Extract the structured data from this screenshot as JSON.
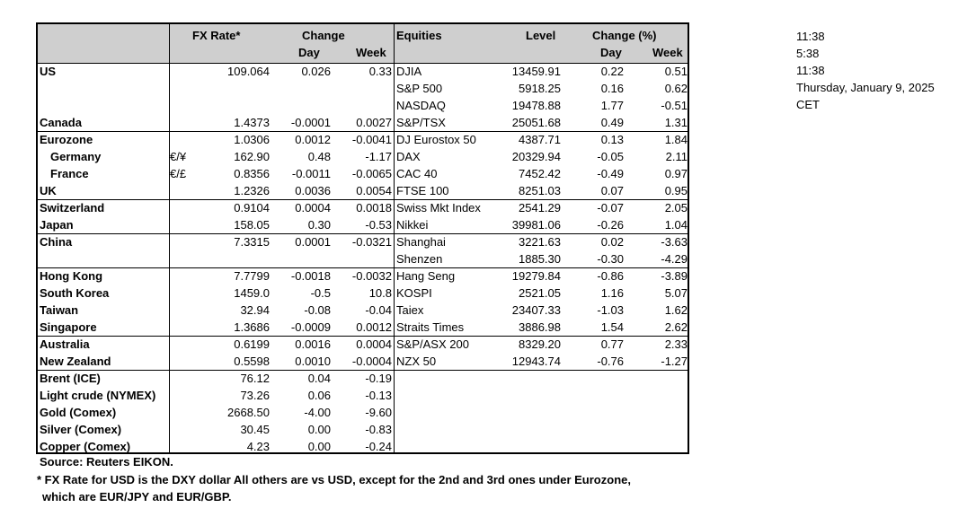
{
  "headers": {
    "fx_rate": "FX Rate*",
    "change": "Change",
    "day": "Day",
    "week": "Week",
    "equities": "Equities",
    "level": "Level",
    "change_pct": "Change (%)",
    "eq_day": "Day",
    "eq_week": "Week"
  },
  "rows": [
    {
      "name": "US",
      "indent": false,
      "curr": "",
      "fx": "109.064",
      "day": "0.026",
      "week": "0.33",
      "index": "DJIA",
      "level": "13459.91",
      "eq_day": "0.22",
      "eq_week": "0.51"
    },
    {
      "name": "",
      "indent": false,
      "curr": "",
      "fx": "",
      "day": "",
      "week": "",
      "index": "S&P 500",
      "level": "5918.25",
      "eq_day": "0.16",
      "eq_week": "0.62"
    },
    {
      "name": "",
      "indent": false,
      "curr": "",
      "fx": "",
      "day": "",
      "week": "",
      "index": "NASDAQ",
      "level": "19478.88",
      "eq_day": "1.77",
      "eq_week": "-0.51"
    },
    {
      "name": "Canada",
      "indent": false,
      "curr": "",
      "fx": "1.4373",
      "day": "-0.0001",
      "week": "0.0027",
      "index": "S&P/TSX",
      "level": "25051.68",
      "eq_day": "0.49",
      "eq_week": "1.31"
    },
    {
      "name": "Eurozone",
      "indent": false,
      "curr": "",
      "fx": "1.0306",
      "day": "0.0012",
      "week": "-0.0041",
      "index": "DJ Eurostox 50",
      "level": "4387.71",
      "eq_day": "0.13",
      "eq_week": "1.84"
    },
    {
      "name": "Germany",
      "indent": true,
      "curr": "€/¥",
      "fx": "162.90",
      "day": "0.48",
      "week": "-1.17",
      "index": "DAX",
      "level": "20329.94",
      "eq_day": "-0.05",
      "eq_week": "2.11"
    },
    {
      "name": "France",
      "indent": true,
      "curr": "€/£",
      "fx": "0.8356",
      "day": "-0.0011",
      "week": "-0.0065",
      "index": "CAC 40",
      "level": "7452.42",
      "eq_day": "-0.49",
      "eq_week": "0.97"
    },
    {
      "name": "UK",
      "indent": false,
      "curr": "",
      "fx": "1.2326",
      "day": "0.0036",
      "week": "0.0054",
      "index": "FTSE 100",
      "level": "8251.03",
      "eq_day": "0.07",
      "eq_week": "0.95"
    },
    {
      "name": "Switzerland",
      "indent": false,
      "curr": "",
      "fx": "0.9104",
      "day": "0.0004",
      "week": "0.0018",
      "index": "Swiss Mkt Index",
      "level": "2541.29",
      "eq_day": "-0.07",
      "eq_week": "2.05"
    },
    {
      "name": "Japan",
      "indent": false,
      "curr": "",
      "fx": "158.05",
      "day": "0.30",
      "week": "-0.53",
      "index": "Nikkei",
      "level": "39981.06",
      "eq_day": "-0.26",
      "eq_week": "1.04"
    },
    {
      "name": "China",
      "indent": false,
      "curr": "",
      "fx": "7.3315",
      "day": "0.0001",
      "week": "-0.0321",
      "index": "Shanghai",
      "level": "3221.63",
      "eq_day": "0.02",
      "eq_week": "-3.63"
    },
    {
      "name": "",
      "indent": false,
      "curr": "",
      "fx": "",
      "day": "",
      "week": "",
      "index": "Shenzen",
      "level": "1885.30",
      "eq_day": "-0.30",
      "eq_week": "-4.29"
    },
    {
      "name": "Hong Kong",
      "indent": false,
      "curr": "",
      "fx": "7.7799",
      "day": "-0.0018",
      "week": "-0.0032",
      "index": "Hang Seng",
      "level": "19279.84",
      "eq_day": "-0.86",
      "eq_week": "-3.89"
    },
    {
      "name": "South Korea",
      "indent": false,
      "curr": "",
      "fx": "1459.0",
      "day": "-0.5",
      "week": "10.8",
      "index": "KOSPI",
      "level": "2521.05",
      "eq_day": "1.16",
      "eq_week": "5.07"
    },
    {
      "name": "Taiwan",
      "indent": false,
      "curr": "",
      "fx": "32.94",
      "day": "-0.08",
      "week": "-0.04",
      "index": "Taiex",
      "level": "23407.33",
      "eq_day": "-1.03",
      "eq_week": "1.62"
    },
    {
      "name": "Singapore",
      "indent": false,
      "curr": "",
      "fx": "1.3686",
      "day": "-0.0009",
      "week": "0.0012",
      "index": "Straits Times",
      "level": "3886.98",
      "eq_day": "1.54",
      "eq_week": "2.62"
    },
    {
      "name": "Australia",
      "indent": false,
      "curr": "",
      "fx": "0.6199",
      "day": "0.0016",
      "week": "0.0004",
      "index": "S&P/ASX  200",
      "level": "8329.20",
      "eq_day": "0.77",
      "eq_week": "2.33"
    },
    {
      "name": "New Zealand",
      "indent": false,
      "curr": "",
      "fx": "0.5598",
      "day": "0.0010",
      "week": "-0.0004",
      "index": "NZX 50",
      "level": "12943.74",
      "eq_day": "-0.76",
      "eq_week": "-1.27"
    },
    {
      "name": "Brent (ICE)",
      "indent": false,
      "curr": "",
      "fx": "76.12",
      "day": "0.04",
      "week": "-0.19",
      "index": "",
      "level": "",
      "eq_day": "",
      "eq_week": ""
    },
    {
      "name": "Light crude (NYMEX)",
      "indent": false,
      "curr": "",
      "fx": "73.26",
      "day": "0.06",
      "week": "-0.13",
      "index": "",
      "level": "",
      "eq_day": "",
      "eq_week": ""
    },
    {
      "name": "Gold (Comex)",
      "indent": false,
      "curr": "",
      "fx": "2668.50",
      "day": "-4.00",
      "week": "-9.60",
      "index": "",
      "level": "",
      "eq_day": "",
      "eq_week": ""
    },
    {
      "name": "Silver (Comex)",
      "indent": false,
      "curr": "",
      "fx": "30.45",
      "day": "0.00",
      "week": "-0.83",
      "index": "",
      "level": "",
      "eq_day": "",
      "eq_week": ""
    },
    {
      "name": "Copper (Comex)",
      "indent": false,
      "curr": "",
      "fx": "4.23",
      "day": "0.00",
      "week": "-0.24",
      "index": "",
      "level": "",
      "eq_day": "",
      "eq_week": ""
    }
  ],
  "footnotes": {
    "source": "Source:  Reuters EIKON.",
    "note1": "* FX Rate for USD is the DXY dollar  All others are vs USD, except for the 2nd and 3rd ones under Eurozone,",
    "note2": "which are EUR/JPY and EUR/GBP."
  },
  "side_info": {
    "time1": "11:38",
    "time2": "5:38",
    "time3": "11:38",
    "date": "Thursday, January 9, 2025",
    "tz": "CET"
  }
}
